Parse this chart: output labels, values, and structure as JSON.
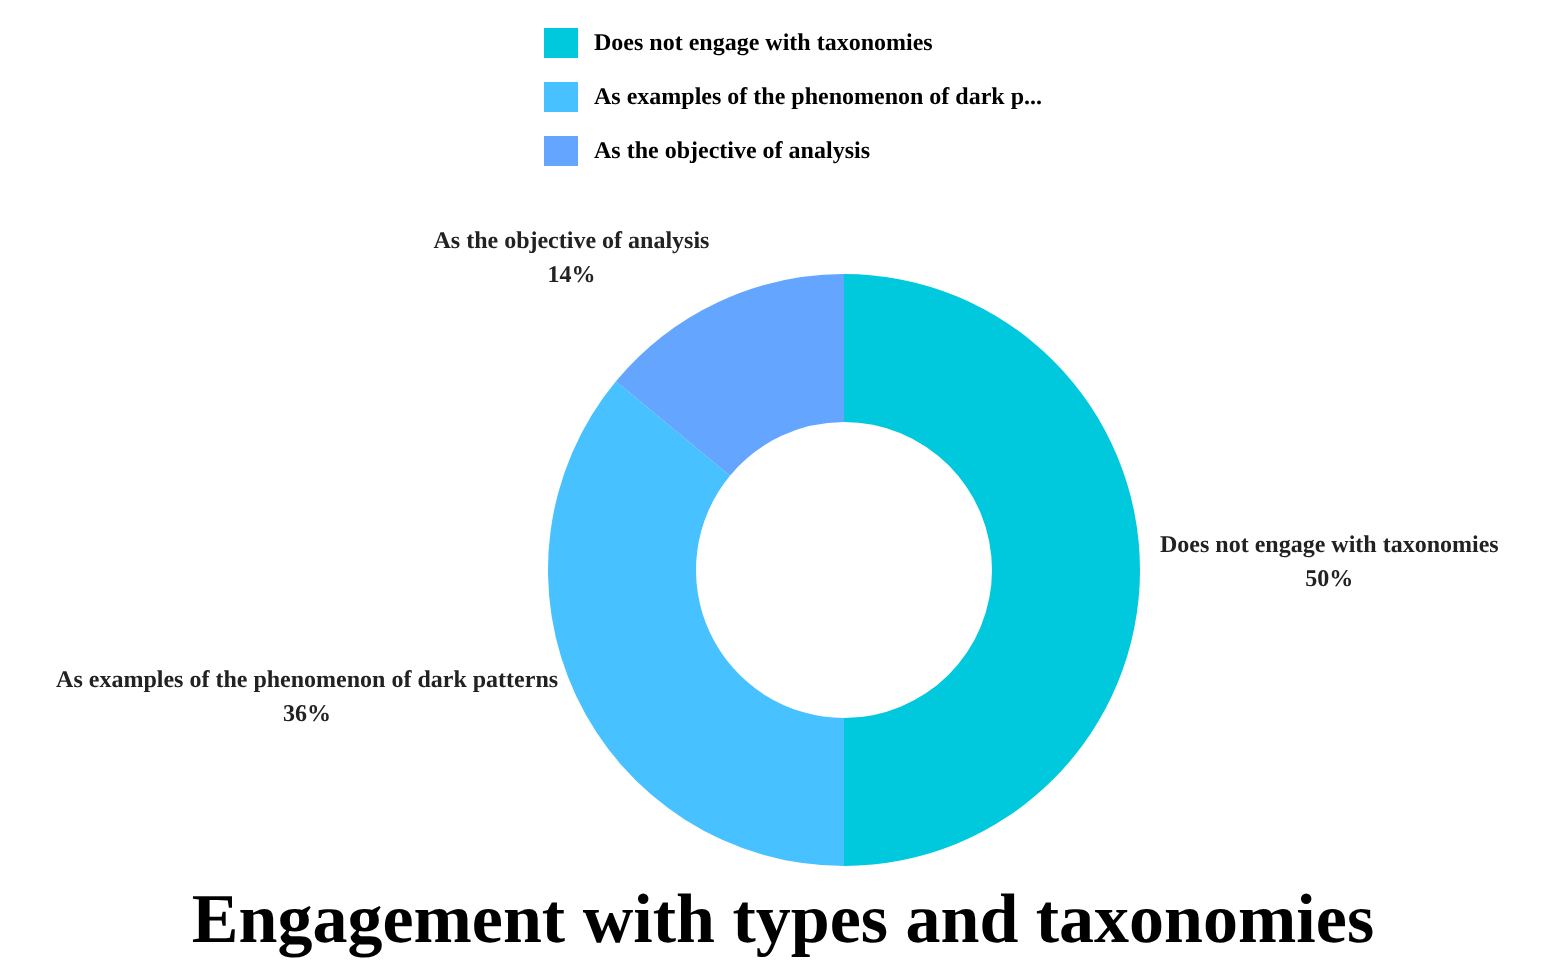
{
  "chart_data": {
    "type": "donut",
    "title": "Engagement with types and taxonomies",
    "categories": [
      "Does not engage with taxonomies",
      "As examples of the phenomenon of dark p...",
      "As the objective of analysis"
    ],
    "values": [
      50,
      36,
      14
    ],
    "value_labels": [
      "50%",
      "36%",
      "14%"
    ],
    "annotations": [
      "Does not engage with taxonomies",
      "As examples of the phenomenon of dark patterns",
      "As the objective of analysis"
    ],
    "colors": [
      "#00c9dd",
      "#47c1ff",
      "#63a5ff"
    ],
    "legend": "top"
  }
}
